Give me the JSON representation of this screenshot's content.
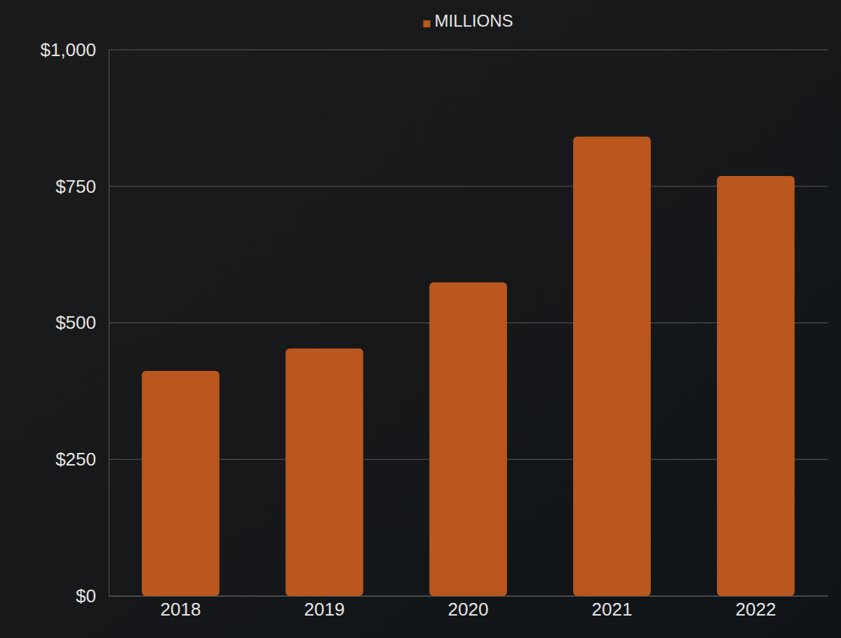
{
  "chart_data": {
    "type": "bar",
    "categories": [
      "2018",
      "2019",
      "2020",
      "2021",
      "2022"
    ],
    "series": [
      {
        "name": "MILLIONS",
        "color": "#b9571f",
        "values": [
          412,
          453,
          574,
          841,
          769
        ]
      }
    ],
    "ylim": [
      0,
      1000
    ],
    "yticks": [
      {
        "value": 0,
        "label": "$0"
      },
      {
        "value": 250,
        "label": "$250"
      },
      {
        "value": 500,
        "label": "$500"
      },
      {
        "value": 750,
        "label": "$750"
      },
      {
        "value": 1000,
        "label": "$1,000"
      }
    ],
    "grid": true,
    "legend": "top"
  }
}
